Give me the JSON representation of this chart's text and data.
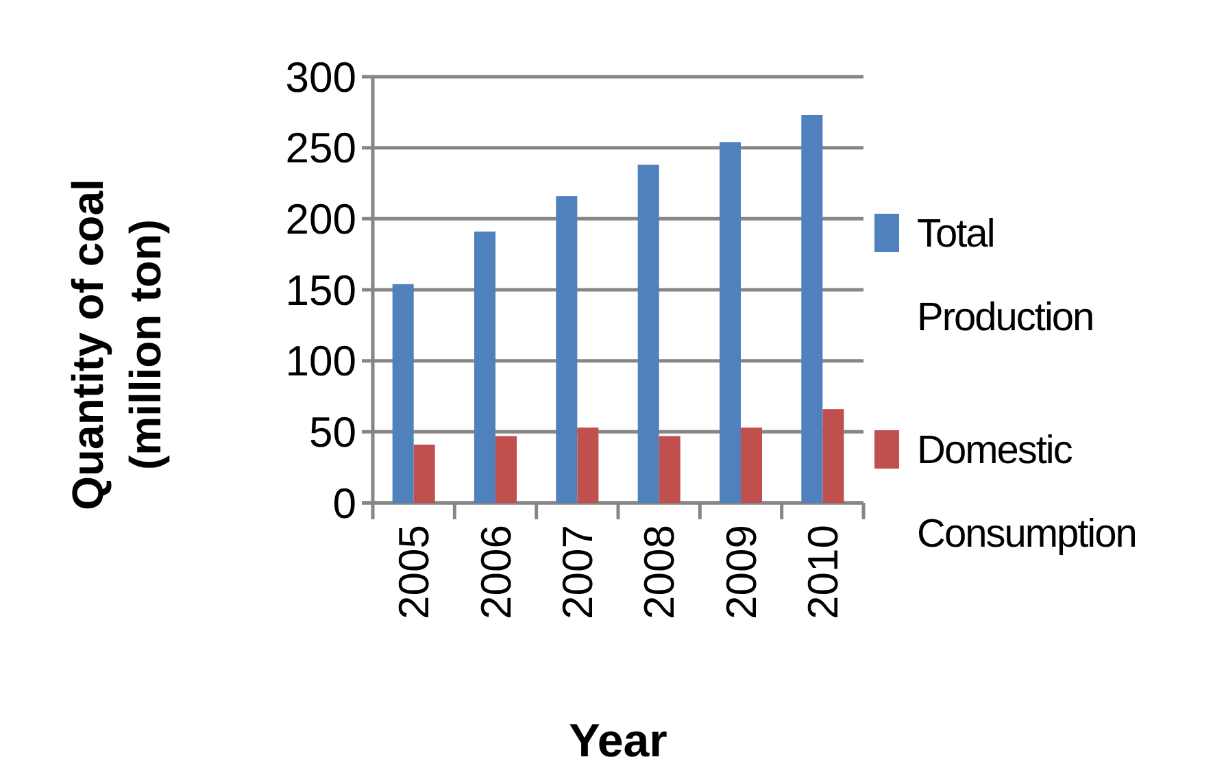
{
  "chart_data": {
    "type": "bar",
    "categories": [
      "2005",
      "2006",
      "2007",
      "2008",
      "2009",
      "2010"
    ],
    "series": [
      {
        "name": "Total Production",
        "color": "#4f81bd",
        "values": [
          154,
          191,
          216,
          238,
          254,
          273
        ]
      },
      {
        "name": "Domestic Consumption",
        "color": "#c0504d",
        "values": [
          41,
          47,
          53,
          47,
          53,
          66
        ]
      }
    ],
    "xlabel": "Year",
    "ylabel": "Quantity of coal (million ton)",
    "ylim": [
      0,
      300
    ],
    "yticks": [
      0,
      50,
      100,
      150,
      200,
      250,
      300
    ],
    "grid": "y",
    "legend": "right"
  }
}
